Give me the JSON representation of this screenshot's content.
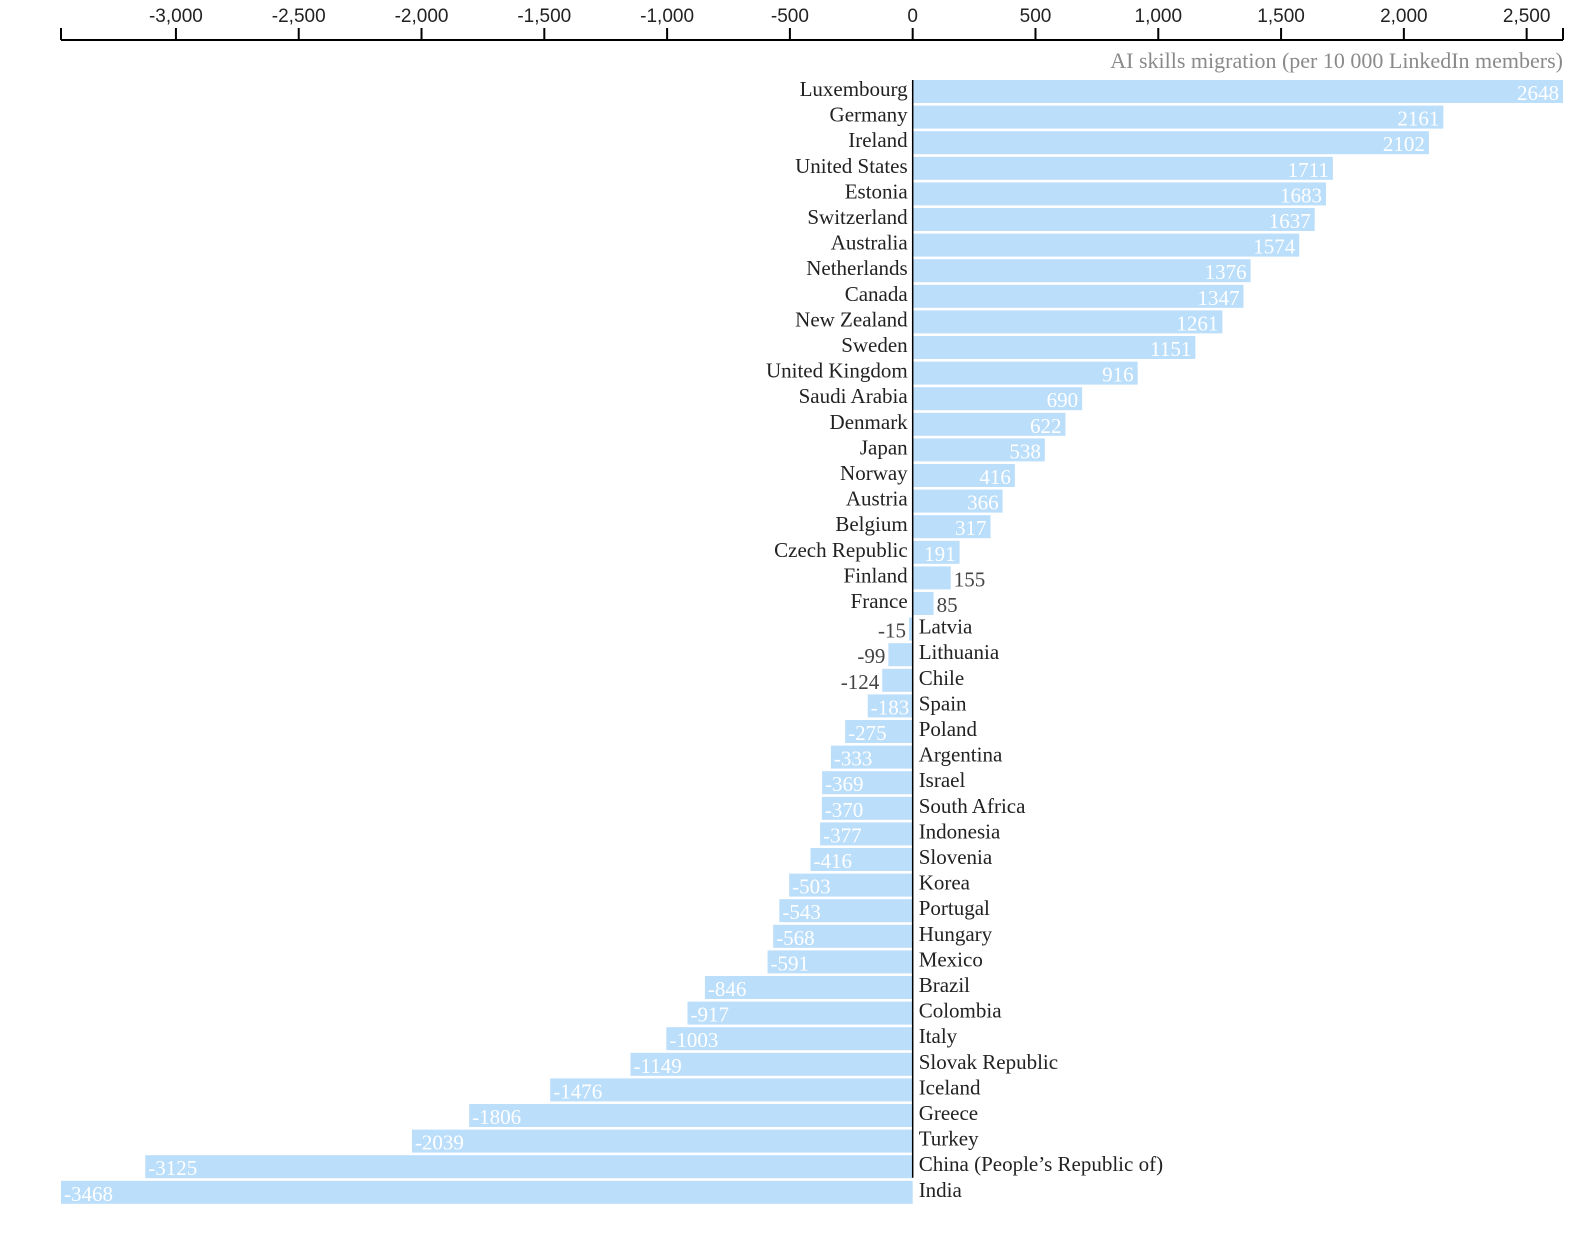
{
  "chart_data": {
    "type": "bar",
    "orientation": "horizontal",
    "metric_label": "AI skills migration (per 10 000 LinkedIn members)",
    "xlim": [
      -3468,
      2648
    ],
    "x_ticks": [
      -3000,
      -2500,
      -2000,
      -1500,
      -1000,
      -500,
      0,
      500,
      1000,
      1500,
      2000,
      2500
    ],
    "x_tick_labels": [
      "-3,000",
      "-2,500",
      "-2,000",
      "-1,500",
      "-1,000",
      "-500",
      "0",
      "500",
      "1,000",
      "1,500",
      "2,000",
      "2,500"
    ],
    "axis_position": "top",
    "grid": false,
    "bar_color": "#bbdefb",
    "categories": [
      "Luxembourg",
      "Germany",
      "Ireland",
      "United States",
      "Estonia",
      "Switzerland",
      "Australia",
      "Netherlands",
      "Canada",
      "New Zealand",
      "Sweden",
      "United Kingdom",
      "Saudi Arabia",
      "Denmark",
      "Japan",
      "Norway",
      "Austria",
      "Belgium",
      "Czech Republic",
      "Finland",
      "France",
      "Latvia",
      "Lithuania",
      "Chile",
      "Spain",
      "Poland",
      "Argentina",
      "Israel",
      "South Africa",
      "Indonesia",
      "Slovenia",
      "Korea",
      "Portugal",
      "Hungary",
      "Mexico",
      "Brazil",
      "Colombia",
      "Italy",
      "Slovak Republic",
      "Iceland",
      "Greece",
      "Turkey",
      "China (People’s Republic of)",
      "India"
    ],
    "values": [
      2648,
      2161,
      2102,
      1711,
      1683,
      1637,
      1574,
      1376,
      1347,
      1261,
      1151,
      916,
      690,
      622,
      538,
      416,
      366,
      317,
      191,
      155,
      85,
      -15,
      -99,
      -124,
      -183,
      -275,
      -333,
      -369,
      -370,
      -377,
      -416,
      -503,
      -543,
      -568,
      -591,
      -846,
      -917,
      -1003,
      -1149,
      -1476,
      -1806,
      -2039,
      -3125,
      -3468
    ]
  }
}
